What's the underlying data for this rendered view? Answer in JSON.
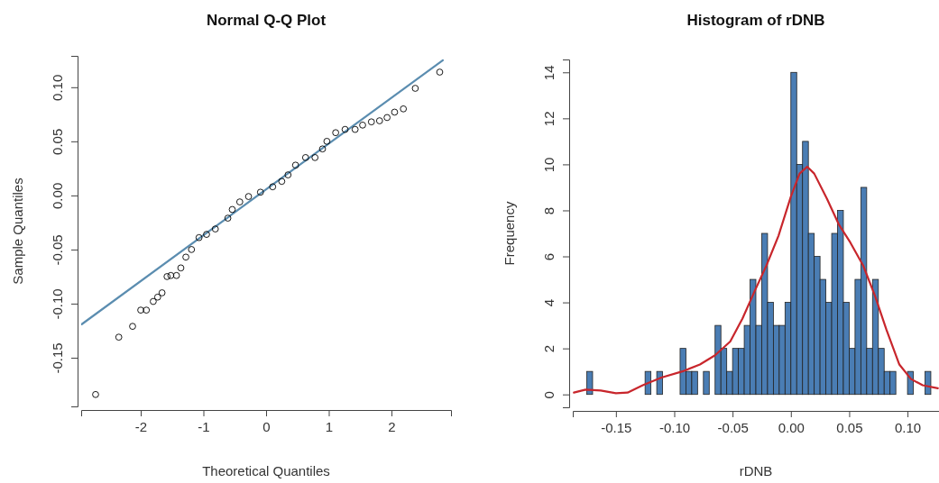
{
  "chart_data": [
    {
      "type": "scatter",
      "title": "Normal Q-Q Plot",
      "xlabel": "Theoretical Quantiles",
      "ylabel": "Sample Quantiles",
      "xlim": [
        -2.95,
        2.95
      ],
      "ylim": [
        -0.195,
        0.129
      ],
      "xticks": [
        -2,
        -1,
        0,
        1,
        2
      ],
      "yticks": [
        {
          "value": -0.15,
          "label": "-0.15"
        },
        {
          "value": -0.1,
          "label": "-0.10"
        },
        {
          "value": -0.05,
          "label": "-0.05"
        },
        {
          "value": 0,
          "label": "0.00"
        },
        {
          "value": 0.05,
          "label": "0.05"
        },
        {
          "value": 0.1,
          "label": "0.10"
        }
      ],
      "series": [
        {
          "marker": "circle",
          "color": "#000000",
          "x": [
            -2.72,
            -2.35,
            -2.13,
            -2.0,
            -1.91,
            -1.8,
            -1.73,
            -1.66,
            -1.58,
            -1.52,
            -1.43,
            -1.36,
            -1.28,
            -1.19,
            -1.07,
            -0.95,
            -0.81,
            -0.61,
            -0.54,
            -0.42,
            -0.28,
            -0.09,
            0.105,
            0.25,
            0.35,
            0.47,
            0.63,
            0.78,
            0.9,
            0.97,
            1.11,
            1.26,
            1.42,
            1.54,
            1.68,
            1.81,
            1.93,
            2.05,
            2.19,
            2.38,
            2.77
          ],
          "values": [
            -0.184,
            -0.131,
            -0.121,
            -0.106,
            -0.106,
            -0.098,
            -0.094,
            -0.09,
            -0.075,
            -0.074,
            -0.074,
            -0.067,
            -0.057,
            -0.05,
            -0.039,
            -0.036,
            -0.031,
            -0.021,
            -0.013,
            -0.006,
            -0.001,
            0.003,
            0.008,
            0.013,
            0.019,
            0.028,
            0.035,
            0.035,
            0.043,
            0.05,
            0.058,
            0.061,
            0.061,
            0.065,
            0.068,
            0.069,
            0.072,
            0.077,
            0.08,
            0.099,
            0.114
          ]
        },
        {
          "type": "line",
          "color": "#5b8db0",
          "x": [
            -2.94,
            2.82
          ],
          "values": [
            -0.119,
            0.125
          ]
        }
      ]
    },
    {
      "type": "histogram",
      "title": "Histogram of rDNB",
      "xlabel": "rDNB",
      "ylabel": "Frequency",
      "xlim": [
        -0.187,
        0.127
      ],
      "ylim": [
        -0.56,
        14.56
      ],
      "xticks": [
        {
          "value": -0.15,
          "label": "-0.15"
        },
        {
          "value": -0.1,
          "label": "-0.10"
        },
        {
          "value": -0.05,
          "label": "-0.05"
        },
        {
          "value": 0,
          "label": "0.00"
        },
        {
          "value": 0.05,
          "label": "0.05"
        },
        {
          "value": 0.1,
          "label": "0.10"
        }
      ],
      "yticks": [
        0,
        2,
        4,
        6,
        8,
        10,
        12,
        14
      ],
      "bins": [
        -0.175,
        -0.17,
        -0.165,
        -0.16,
        -0.155,
        -0.15,
        -0.145,
        -0.14,
        -0.135,
        -0.13,
        -0.125,
        -0.12,
        -0.115,
        -0.11,
        -0.105,
        -0.1,
        -0.095,
        -0.09,
        -0.085,
        -0.08,
        -0.075,
        -0.07,
        -0.065,
        -0.06,
        -0.055,
        -0.05,
        -0.045,
        -0.04,
        -0.035,
        -0.03,
        -0.025,
        -0.02,
        -0.015,
        -0.01,
        -0.005,
        0,
        0.005,
        0.01,
        0.015,
        0.02,
        0.025,
        0.03,
        0.035,
        0.04,
        0.045,
        0.05,
        0.055,
        0.06,
        0.065,
        0.07,
        0.075,
        0.08,
        0.085,
        0.09,
        0.095,
        0.1,
        0.105,
        0.11,
        0.115,
        0.12
      ],
      "series": [
        {
          "color": "#4a7db4",
          "values": [
            1,
            0,
            0,
            0,
            0,
            0,
            0,
            0,
            0,
            0,
            1,
            0,
            1,
            0,
            0,
            0,
            2,
            1,
            1,
            0,
            1,
            0,
            3,
            2,
            1,
            2,
            2,
            3,
            5,
            3,
            7,
            4,
            3,
            3,
            4,
            14,
            10,
            11,
            7,
            6,
            5,
            4,
            7,
            8,
            4,
            2,
            5,
            9,
            2,
            5,
            2,
            1,
            1,
            0,
            0,
            1,
            0,
            0,
            1
          ]
        },
        {
          "type": "line",
          "color": "#c8262c",
          "x": [
            -0.186,
            -0.176,
            -0.163,
            -0.15,
            -0.14,
            -0.127,
            -0.111,
            -0.093,
            -0.078,
            -0.065,
            -0.052,
            -0.0415,
            -0.031,
            -0.021,
            -0.0106,
            0.0,
            0.0075,
            0.014,
            0.02,
            0.031,
            0.041,
            0.051,
            0.062,
            0.072,
            0.082,
            0.093,
            0.103,
            0.113,
            0.126
          ],
          "values": [
            0.08,
            0.21,
            0.17,
            0.05,
            0.08,
            0.4,
            0.73,
            1.0,
            1.3,
            1.7,
            2.3,
            3.3,
            4.5,
            5.6,
            6.9,
            8.6,
            9.6,
            9.9,
            9.6,
            8.5,
            7.4,
            6.6,
            5.6,
            4.3,
            2.8,
            1.3,
            0.67,
            0.4,
            0.27
          ]
        }
      ]
    }
  ]
}
